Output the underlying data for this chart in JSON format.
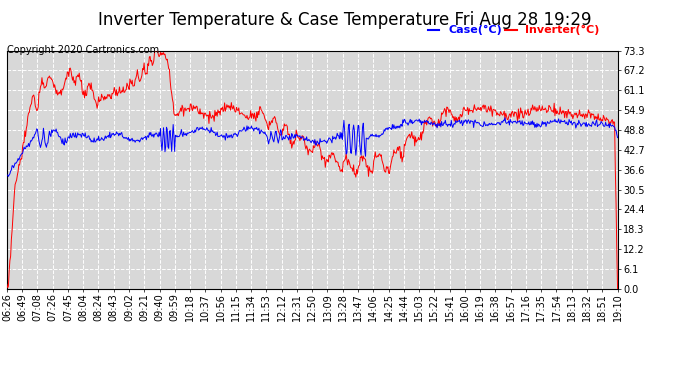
{
  "title": "Inverter Temperature & Case Temperature Fri Aug 28 19:29",
  "copyright": "Copyright 2020 Cartronics.com",
  "legend_case": "Case(°C)",
  "legend_inverter": "Inverter(°C)",
  "yticks": [
    0.0,
    6.1,
    12.2,
    18.3,
    24.4,
    30.5,
    36.6,
    42.7,
    48.8,
    54.9,
    61.1,
    67.2,
    73.3
  ],
  "ymin": 0.0,
  "ymax": 73.3,
  "background_color": "#ffffff",
  "plot_bg_color": "#d8d8d8",
  "grid_color": "#ffffff",
  "case_color": "blue",
  "inverter_color": "red",
  "title_fontsize": 12,
  "copyright_fontsize": 7,
  "tick_fontsize": 7,
  "legend_fontsize": 8,
  "xtick_labels": [
    "06:26",
    "06:49",
    "07:08",
    "07:26",
    "07:45",
    "08:04",
    "08:24",
    "08:43",
    "09:02",
    "09:21",
    "09:40",
    "09:59",
    "10:18",
    "10:37",
    "10:56",
    "11:15",
    "11:34",
    "11:53",
    "12:12",
    "12:31",
    "12:50",
    "13:09",
    "13:28",
    "13:47",
    "14:06",
    "14:25",
    "14:44",
    "15:03",
    "15:22",
    "15:41",
    "16:00",
    "16:19",
    "16:38",
    "16:57",
    "17:16",
    "17:35",
    "17:54",
    "18:13",
    "18:32",
    "18:51",
    "19:10"
  ]
}
